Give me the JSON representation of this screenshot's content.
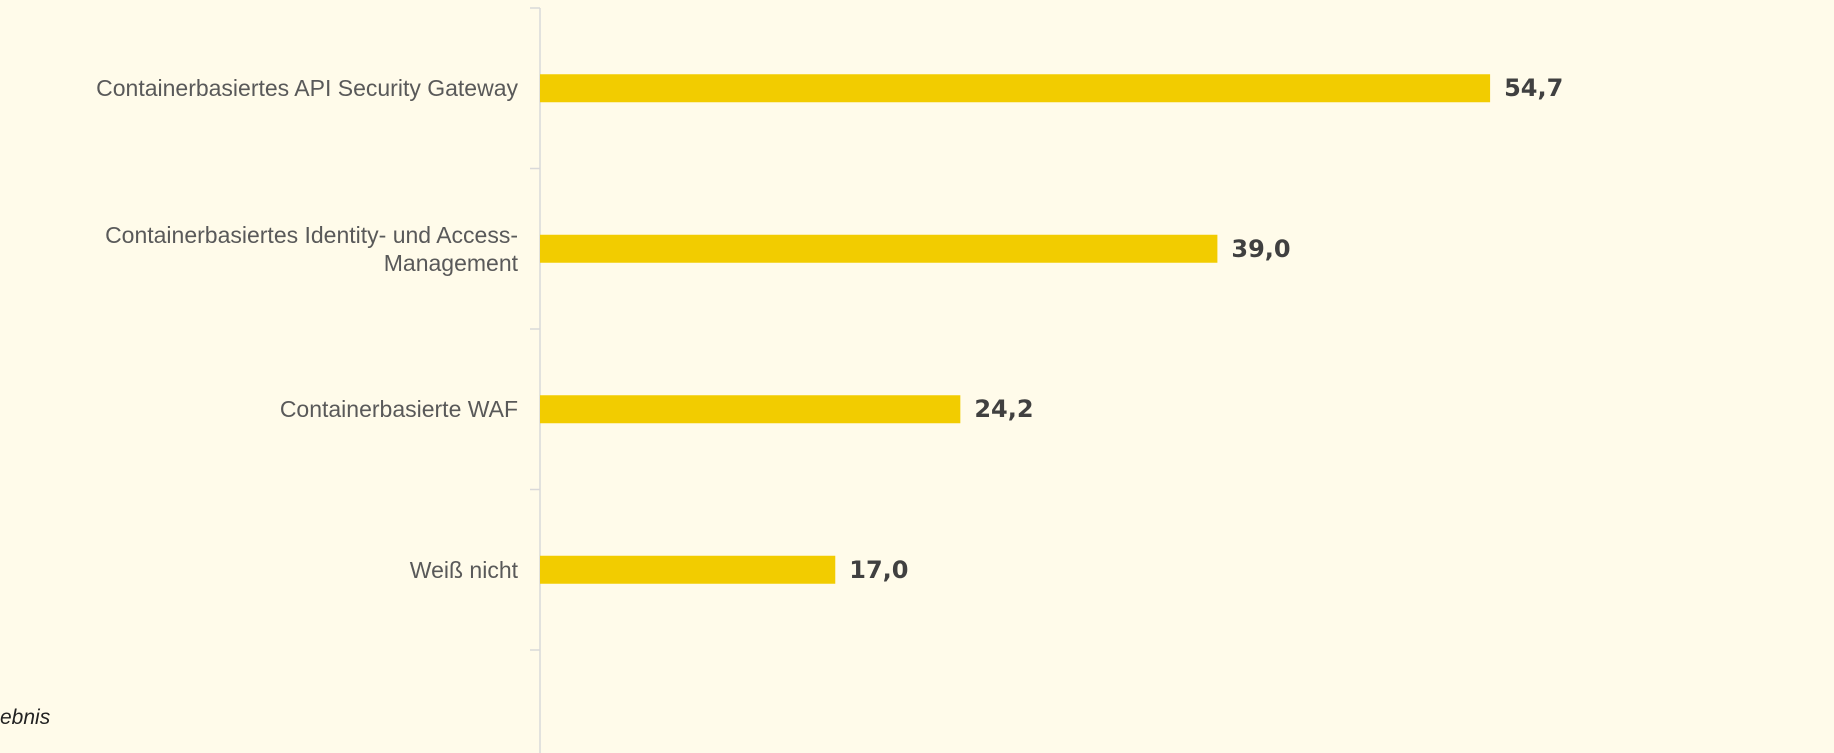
{
  "chart_data": {
    "type": "barh",
    "categories": [
      "Containerbasiertes API Security Gateway",
      "Containerbasiertes Identity- und Access-Management",
      "Containerbasierte WAF",
      "Weiß nicht"
    ],
    "values": [
      54.7,
      39.0,
      24.2,
      17.0
    ],
    "value_labels": [
      "54,7",
      "39,0",
      "24,2",
      "17,0"
    ],
    "color": "#f2cc00",
    "xlim": [
      0,
      74.5
    ],
    "footnote": "ebnis"
  }
}
